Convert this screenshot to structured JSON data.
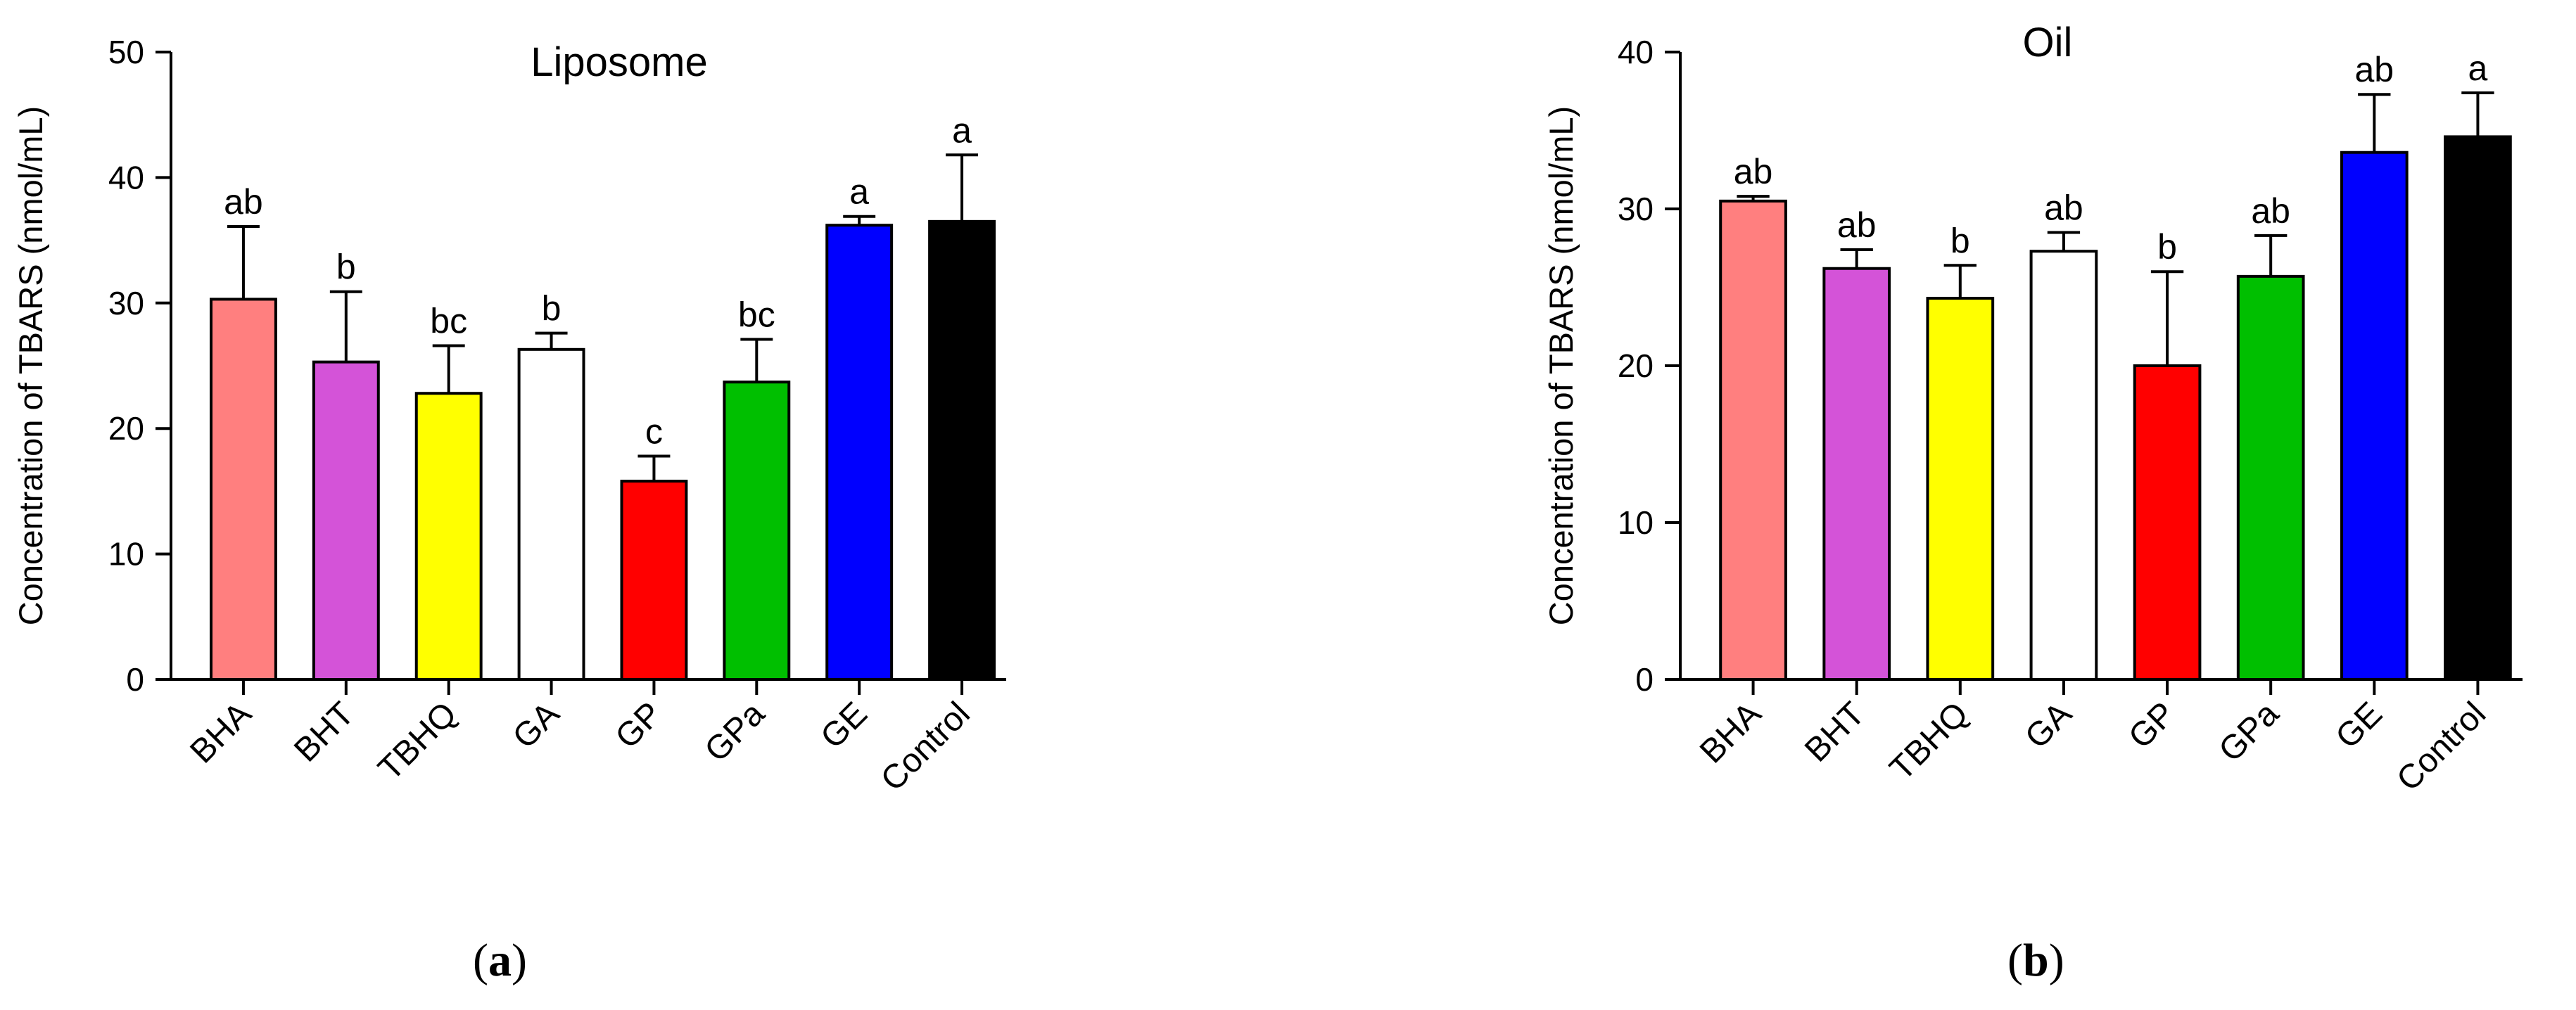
{
  "chart_data": [
    {
      "panel": "a",
      "type": "bar",
      "title": "Liposome",
      "ylabel": "Concentration of TBARS (nmol/mL)",
      "ylim": [
        0,
        50
      ],
      "yticks": [
        0,
        10,
        20,
        30,
        40,
        50
      ],
      "categories": [
        "BHA",
        "BHT",
        "TBHQ",
        "GA",
        "GP",
        "GPa",
        "GE",
        "Control"
      ],
      "values": [
        30.3,
        25.3,
        22.8,
        26.3,
        15.8,
        23.7,
        36.2,
        36.5
      ],
      "errors": [
        5.8,
        5.6,
        3.8,
        1.3,
        2.0,
        3.4,
        0.7,
        5.3
      ],
      "significance": [
        "ab",
        "b",
        "bc",
        "b",
        "c",
        "bc",
        "a",
        "a"
      ],
      "colors": [
        "#FF7F7F",
        "#D453D8",
        "#FFFF00",
        "#FFFFFF",
        "#FF0000",
        "#00BF00",
        "#0000FF",
        "#000000"
      ],
      "caption": "a"
    },
    {
      "panel": "b",
      "type": "bar",
      "title": "Oil",
      "ylabel": "Concentration of TBARS (nmol/mL)",
      "ylim": [
        0,
        40
      ],
      "yticks": [
        0,
        10,
        20,
        30,
        40
      ],
      "categories": [
        "BHA",
        "BHT",
        "TBHQ",
        "GA",
        "GP",
        "GPa",
        "GE",
        "Control"
      ],
      "values": [
        30.5,
        26.2,
        24.3,
        27.3,
        20.0,
        25.7,
        33.6,
        34.6
      ],
      "errors": [
        0.3,
        1.2,
        2.1,
        1.2,
        6.0,
        2.6,
        3.7,
        2.8
      ],
      "significance": [
        "ab",
        "ab",
        "b",
        "ab",
        "b",
        "ab",
        "ab",
        "a"
      ],
      "colors": [
        "#FF7F7F",
        "#D453D8",
        "#FFFF00",
        "#FFFFFF",
        "#FF0000",
        "#00BF00",
        "#0000FF",
        "#000000"
      ],
      "caption": "b"
    }
  ]
}
